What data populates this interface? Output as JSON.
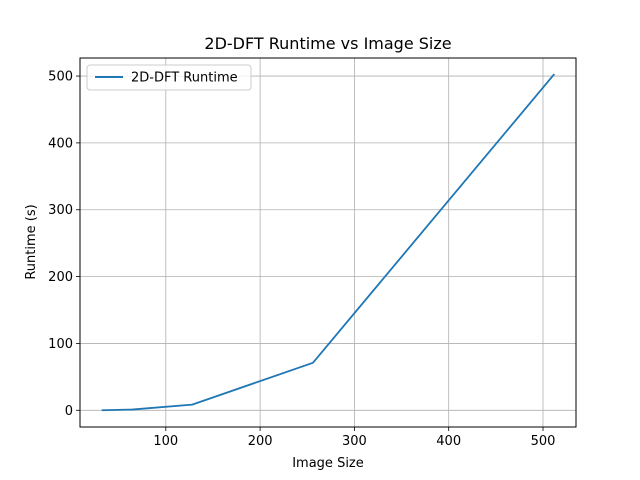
{
  "chart_data": {
    "type": "line",
    "title": "2D-DFT Runtime vs Image Size",
    "xlabel": "Image Size",
    "ylabel": "Runtime (s)",
    "xlim": [
      9,
      535
    ],
    "ylim": [
      -25,
      527
    ],
    "xticks": [
      100,
      200,
      300,
      400,
      500
    ],
    "yticks": [
      0,
      100,
      200,
      300,
      400,
      500
    ],
    "grid": true,
    "legend_position": "top-left",
    "series": [
      {
        "name": "2D-DFT Runtime",
        "color": "#1f77b4",
        "x": [
          32,
          64,
          128,
          256,
          512
        ],
        "y": [
          0.1,
          1.1,
          8.5,
          71,
          503
        ]
      }
    ]
  }
}
